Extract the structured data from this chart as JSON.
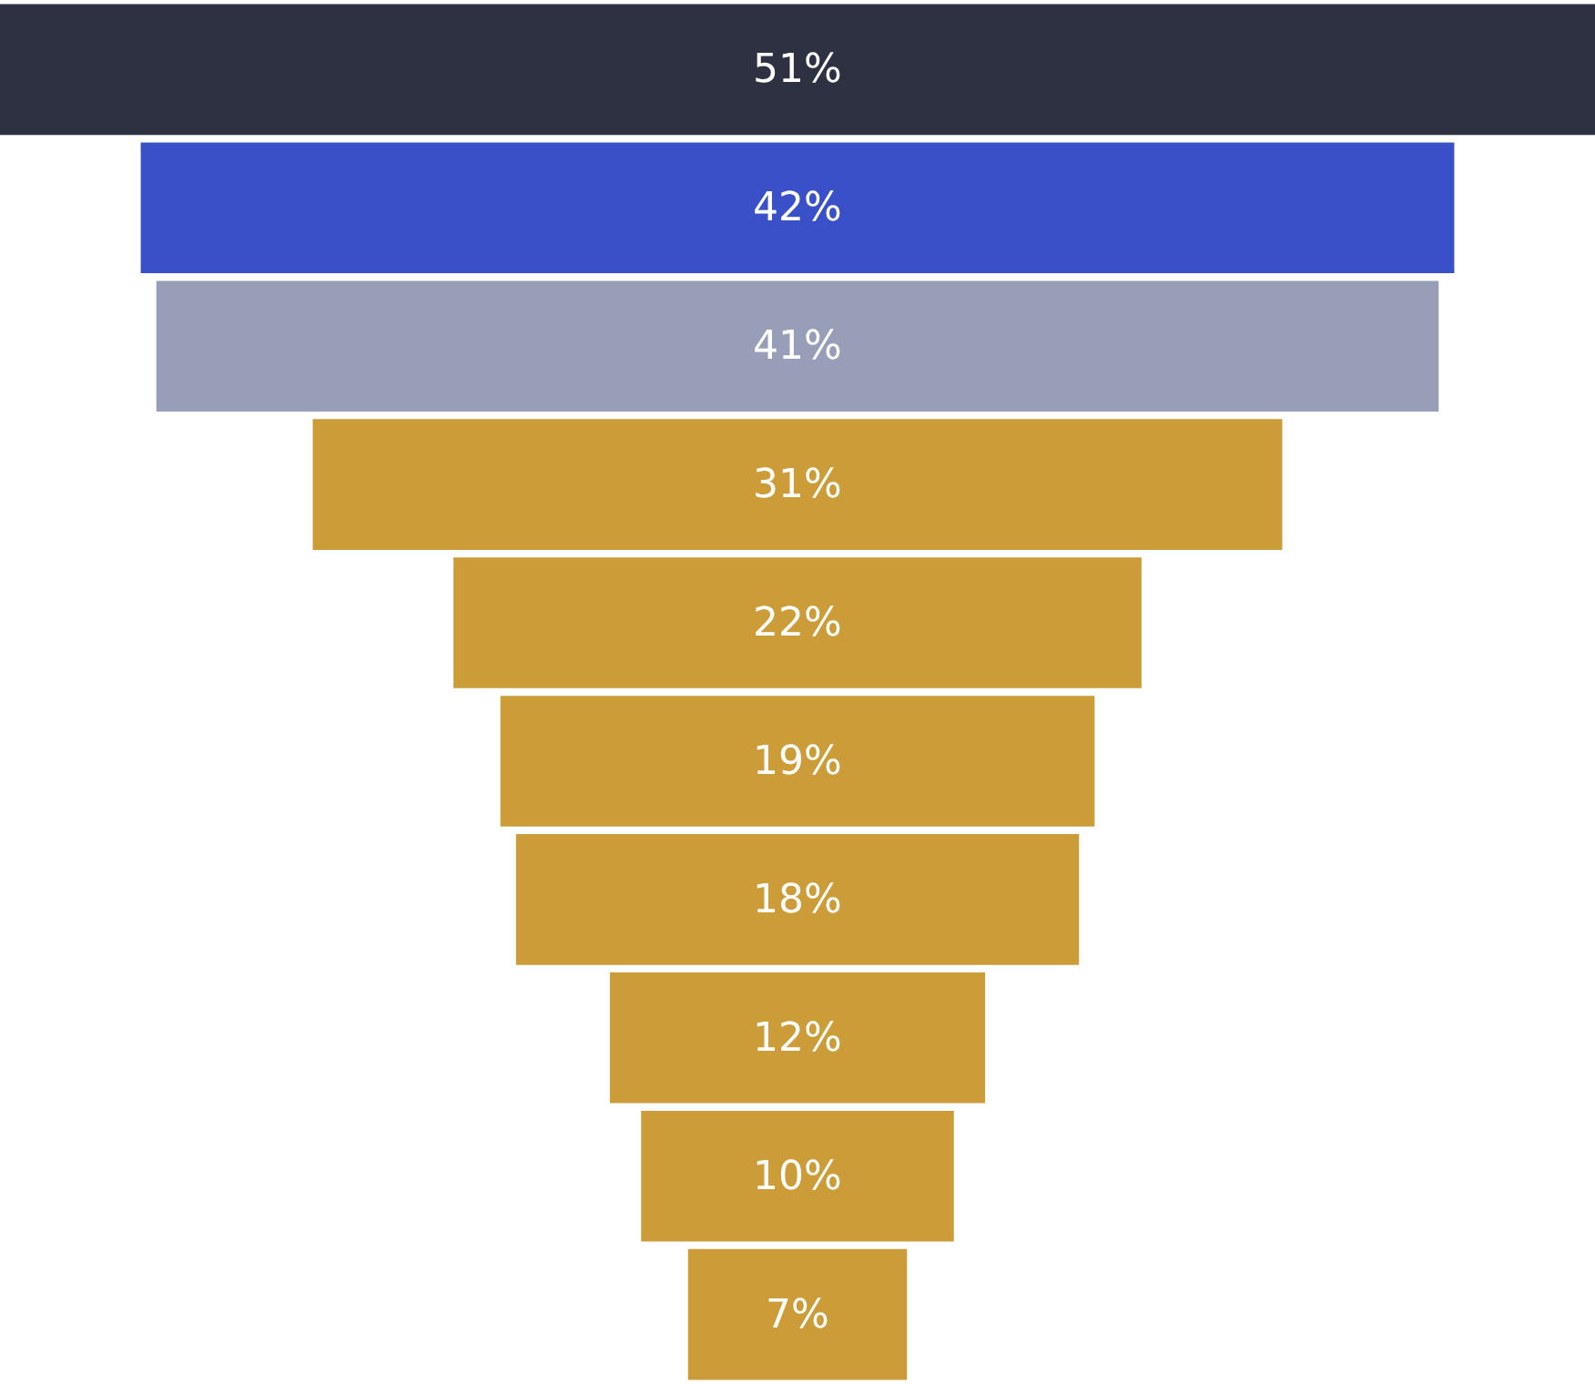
{
  "chart_data": {
    "type": "other",
    "categories": [
      null,
      null,
      null,
      null,
      null,
      null,
      null,
      null,
      null,
      null
    ],
    "values": [
      51,
      42,
      41,
      31,
      22,
      19,
      18,
      12,
      10,
      7
    ],
    "value_labels": [
      "51%",
      "42%",
      "41%",
      "31%",
      "22%",
      "19%",
      "18%",
      "12%",
      "10%",
      "7%"
    ],
    "colors": [
      "#2e3142",
      "#3a50c8",
      "#999eb8",
      "#cc9c38",
      "#cc9c38",
      "#cc9c38",
      "#cc9c38",
      "#cc9c38",
      "#cc9c38",
      "#cc9c38"
    ]
  }
}
